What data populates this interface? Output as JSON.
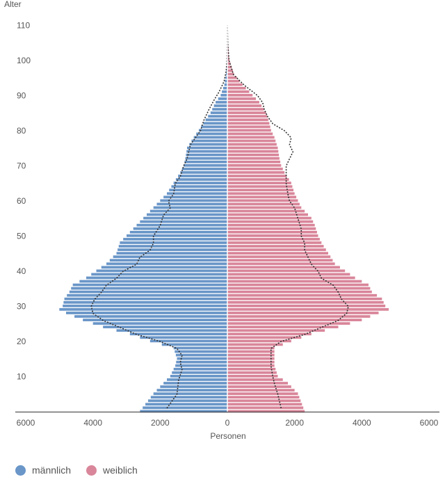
{
  "chart_data": {
    "type": "bar",
    "orientation": "horizontal-population-pyramid",
    "ylabel": "Alter",
    "xlabel": "Personen",
    "xlim": [
      -6000,
      6000
    ],
    "ylim": [
      0,
      110
    ],
    "x_ticks": [
      -6000,
      -4000,
      -2000,
      0,
      2000,
      4000,
      6000
    ],
    "x_tick_labels": [
      "6000",
      "4000",
      "2000",
      "0",
      "2000",
      "4000",
      "6000"
    ],
    "y_ticks": [
      10,
      20,
      30,
      40,
      50,
      60,
      70,
      80,
      90,
      100,
      110
    ],
    "y_tick_labels": [
      "10",
      "20",
      "30",
      "40",
      "50",
      "60",
      "70",
      "80",
      "90",
      "100",
      "110"
    ],
    "colors": {
      "male": "#6a96c8",
      "female": "#d9869a",
      "outline": "#333333"
    },
    "series": [
      {
        "name": "männlich",
        "key": "male",
        "points": [
          [
            0,
            2600
          ],
          [
            5,
            2200
          ],
          [
            10,
            1700
          ],
          [
            13,
            1550
          ],
          [
            15,
            1500
          ],
          [
            18,
            1600
          ],
          [
            20,
            2300
          ],
          [
            22,
            2900
          ],
          [
            24,
            3700
          ],
          [
            26,
            4300
          ],
          [
            28,
            4800
          ],
          [
            29,
            5000
          ],
          [
            30,
            4900
          ],
          [
            32,
            4850
          ],
          [
            34,
            4700
          ],
          [
            36,
            4600
          ],
          [
            38,
            4200
          ],
          [
            40,
            3900
          ],
          [
            42,
            3600
          ],
          [
            45,
            3300
          ],
          [
            48,
            3200
          ],
          [
            50,
            3000
          ],
          [
            53,
            2700
          ],
          [
            55,
            2500
          ],
          [
            58,
            2200
          ],
          [
            60,
            2000
          ],
          [
            62,
            1800
          ],
          [
            65,
            1600
          ],
          [
            68,
            1400
          ],
          [
            70,
            1300
          ],
          [
            72,
            1250
          ],
          [
            75,
            1200
          ],
          [
            78,
            1000
          ],
          [
            80,
            850
          ],
          [
            83,
            650
          ],
          [
            85,
            500
          ],
          [
            88,
            350
          ],
          [
            90,
            200
          ],
          [
            93,
            90
          ],
          [
            96,
            40
          ],
          [
            100,
            15
          ],
          [
            105,
            5
          ],
          [
            110,
            2
          ]
        ]
      },
      {
        "name": "weiblich",
        "key": "female",
        "points": [
          [
            0,
            2300
          ],
          [
            5,
            2100
          ],
          [
            8,
            1800
          ],
          [
            10,
            1500
          ],
          [
            13,
            1400
          ],
          [
            15,
            1400
          ],
          [
            18,
            1400
          ],
          [
            20,
            1900
          ],
          [
            22,
            2500
          ],
          [
            24,
            3300
          ],
          [
            26,
            4000
          ],
          [
            28,
            4500
          ],
          [
            29,
            4800
          ],
          [
            30,
            4700
          ],
          [
            32,
            4600
          ],
          [
            34,
            4300
          ],
          [
            36,
            4200
          ],
          [
            38,
            3800
          ],
          [
            40,
            3500
          ],
          [
            42,
            3200
          ],
          [
            45,
            3000
          ],
          [
            48,
            2800
          ],
          [
            50,
            2700
          ],
          [
            53,
            2600
          ],
          [
            55,
            2500
          ],
          [
            58,
            2200
          ],
          [
            60,
            2100
          ],
          [
            62,
            2000
          ],
          [
            65,
            1900
          ],
          [
            68,
            1700
          ],
          [
            70,
            1600
          ],
          [
            72,
            1550
          ],
          [
            75,
            1500
          ],
          [
            78,
            1400
          ],
          [
            80,
            1300
          ],
          [
            82,
            1250
          ],
          [
            85,
            1150
          ],
          [
            88,
            950
          ],
          [
            90,
            750
          ],
          [
            93,
            450
          ],
          [
            96,
            200
          ],
          [
            100,
            60
          ],
          [
            105,
            15
          ],
          [
            110,
            3
          ]
        ]
      }
    ],
    "reference_outline": {
      "line_style": "dotted",
      "male_points": [
        [
          1,
          1800
        ],
        [
          5,
          1500
        ],
        [
          9,
          1450
        ],
        [
          12,
          1350
        ],
        [
          14,
          1400
        ],
        [
          16,
          1350
        ],
        [
          18,
          1500
        ],
        [
          20,
          2000
        ],
        [
          22,
          2700
        ],
        [
          24,
          3200
        ],
        [
          26,
          3700
        ],
        [
          28,
          4000
        ],
        [
          30,
          4050
        ],
        [
          32,
          3950
        ],
        [
          34,
          3750
        ],
        [
          36,
          3600
        ],
        [
          38,
          3300
        ],
        [
          40,
          3100
        ],
        [
          42,
          2700
        ],
        [
          44,
          2600
        ],
        [
          46,
          2300
        ],
        [
          48,
          2200
        ],
        [
          50,
          2200
        ],
        [
          53,
          2000
        ],
        [
          56,
          1900
        ],
        [
          58,
          1700
        ],
        [
          60,
          1750
        ],
        [
          62,
          1600
        ],
        [
          65,
          1550
        ],
        [
          67,
          1400
        ],
        [
          70,
          1300
        ],
        [
          72,
          1200
        ],
        [
          74,
          1150
        ],
        [
          76,
          1100
        ],
        [
          78,
          950
        ],
        [
          80,
          800
        ],
        [
          83,
          700
        ],
        [
          86,
          550
        ],
        [
          89,
          380
        ],
        [
          91,
          250
        ],
        [
          94,
          100
        ],
        [
          97,
          35
        ],
        [
          100,
          10
        ],
        [
          105,
          4
        ],
        [
          110,
          2
        ]
      ],
      "female_points": [
        [
          1,
          1600
        ],
        [
          5,
          1500
        ],
        [
          8,
          1400
        ],
        [
          10,
          1350
        ],
        [
          13,
          1300
        ],
        [
          15,
          1300
        ],
        [
          18,
          1300
        ],
        [
          20,
          1600
        ],
        [
          22,
          2300
        ],
        [
          24,
          2800
        ],
        [
          26,
          3300
        ],
        [
          28,
          3550
        ],
        [
          30,
          3600
        ],
        [
          32,
          3400
        ],
        [
          34,
          3300
        ],
        [
          36,
          3150
        ],
        [
          38,
          2800
        ],
        [
          40,
          2700
        ],
        [
          42,
          2500
        ],
        [
          44,
          2400
        ],
        [
          46,
          2300
        ],
        [
          48,
          2300
        ],
        [
          50,
          2200
        ],
        [
          52,
          2200
        ],
        [
          55,
          2100
        ],
        [
          58,
          2000
        ],
        [
          60,
          1850
        ],
        [
          62,
          1800
        ],
        [
          65,
          1750
        ],
        [
          67,
          1750
        ],
        [
          70,
          1750
        ],
        [
          72,
          1850
        ],
        [
          74,
          1950
        ],
        [
          76,
          1850
        ],
        [
          78,
          1900
        ],
        [
          80,
          1700
        ],
        [
          82,
          1350
        ],
        [
          84,
          1200
        ],
        [
          86,
          1100
        ],
        [
          88,
          1050
        ],
        [
          90,
          900
        ],
        [
          93,
          500
        ],
        [
          96,
          180
        ],
        [
          100,
          50
        ],
        [
          105,
          12
        ],
        [
          110,
          3
        ]
      ]
    }
  },
  "legend": {
    "items": [
      {
        "label": "männlich",
        "color": "#6a96c8"
      },
      {
        "label": "weiblich",
        "color": "#d9869a"
      }
    ]
  }
}
